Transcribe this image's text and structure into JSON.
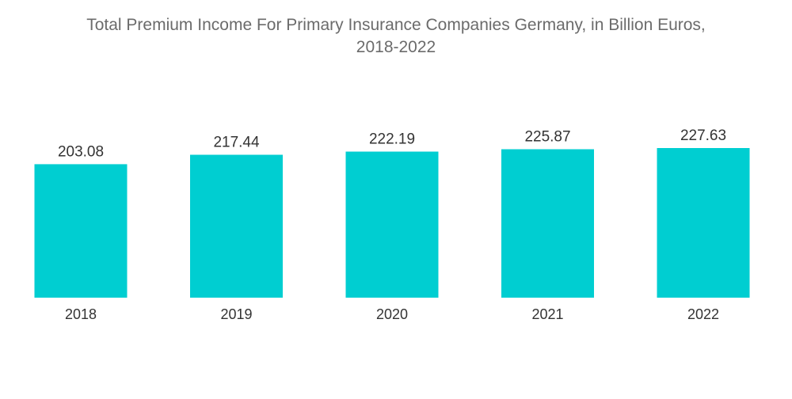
{
  "chart_data": {
    "type": "bar",
    "title_line1": "Total Premium Income For Primary Insurance Companies Germany, in Billion Euros,",
    "title_line2": "2018-2022",
    "categories": [
      "2018",
      "2019",
      "2020",
      "2021",
      "2022"
    ],
    "values": [
      203.08,
      217.44,
      222.19,
      225.87,
      227.63
    ],
    "value_labels": [
      "203.08",
      "217.44",
      "222.19",
      "225.87",
      "227.63"
    ],
    "xlabel": "",
    "ylabel": "",
    "ylim": [
      0,
      227.63
    ],
    "grid": false,
    "legend": "none",
    "bar_color": "#00ced1"
  }
}
